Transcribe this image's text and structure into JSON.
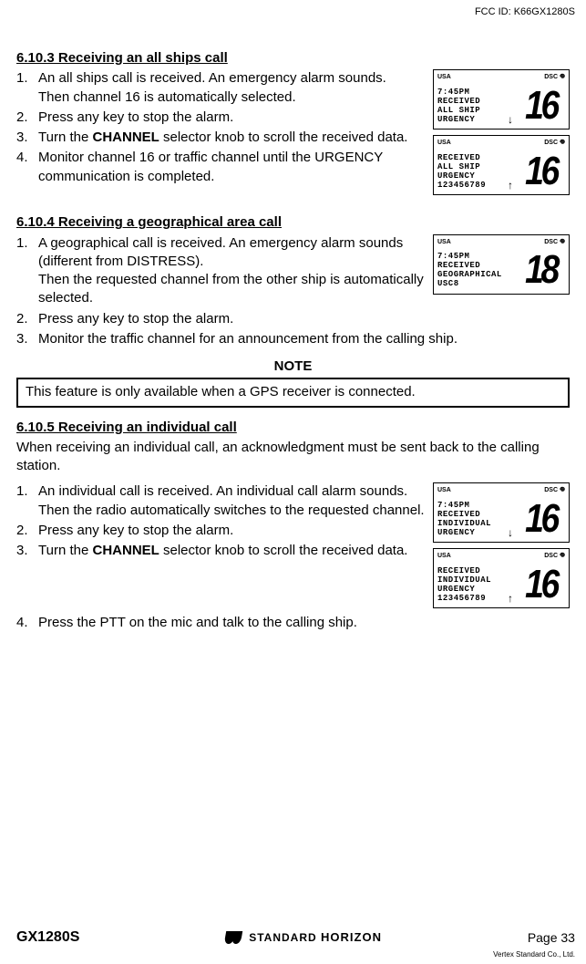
{
  "fcc": "FCC ID: K66GX1280S",
  "s1": {
    "heading": "6.10.3 Receiving an all ships call",
    "step1a": "An all ships call is received. An emergency alarm sounds.",
    "step1b": "Then channel 16 is automatically selected.",
    "step2": "Press any key to stop the alarm.",
    "step3a": "Turn the ",
    "step3b": "CHANNEL",
    "step3c": " selector knob to scroll the received data.",
    "step4": "Monitor channel 16 or traffic channel until the URGENCY communication is completed."
  },
  "s2": {
    "heading": "6.10.4 Receiving a geographical area call",
    "step1a": "A geographical call is received.  An emergency alarm sounds (different from DISTRESS).",
    "step1b": "Then the requested channel from the other ship is automatically selected.",
    "step2": "Press any key to stop the alarm.",
    "step3": "Monitor the traffic channel for an announcement from the calling ship."
  },
  "noteLabel": "NOTE",
  "noteText": "This feature is only available when a GPS receiver is connected.",
  "s3": {
    "heading": "6.10.5 Receiving an individual call",
    "intro": "When receiving an individual call, an acknowledgment must be sent back to the calling station.",
    "step1a": "An individual call is received.  An individual call alarm sounds.",
    "step1b": "Then the radio automatically switches to the requested channel.",
    "step2": "Press any key to stop the alarm.",
    "step3a": "Turn the ",
    "step3b": "CHANNEL",
    "step3c": " selector knob to scroll the received data.",
    "step4": "Press the PTT on the mic and talk to the calling ship."
  },
  "lcd": {
    "usa": "USA",
    "dsc": "DSC",
    "a1": {
      "lines": "7:45PM\nRECEIVED\nALL SHIP\nURGENCY",
      "ch": "16",
      "arrow": "↓"
    },
    "a2": {
      "lines": "RECEIVED\nALL SHIP\nURGENCY\n123456789",
      "ch": "16",
      "arrow": "↑"
    },
    "b1": {
      "lines": "7:45PM\nRECEIVED\nGEOGRAPHICAL\nUSC8",
      "ch": "18",
      "arrow": ""
    },
    "c1": {
      "lines": "7:45PM\nRECEIVED\nINDIVIDUAL\nURGENCY",
      "ch": "16",
      "arrow": "↓"
    },
    "c2": {
      "lines": "RECEIVED\nINDIVIDUAL\nURGENCY\n123456789",
      "ch": "16",
      "arrow": "↑"
    }
  },
  "footer": {
    "model": "GX1280S",
    "brand": "STANDARD HORIZON",
    "page": "Page 33",
    "vertex": "Vertex Standard Co., Ltd."
  }
}
